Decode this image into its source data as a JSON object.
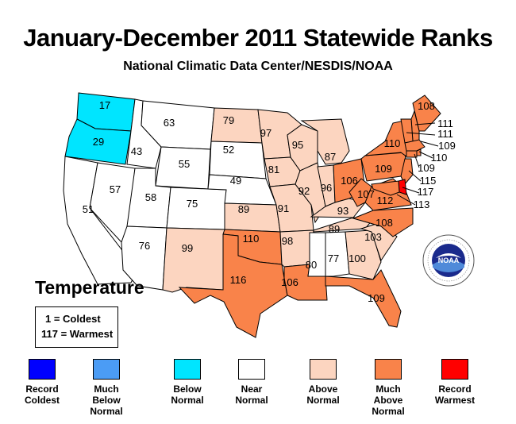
{
  "title": "January-December 2011 Statewide Ranks",
  "subtitle": "National Climatic Data Center/NESDIS/NOAA",
  "map_label": "Temperature",
  "key": {
    "coldest": "1 = Coldest",
    "warmest": "117 = Warmest"
  },
  "colors": {
    "record_coldest": "#0000ff",
    "much_below": "#4b9cf5",
    "below": "#00e5ff",
    "near": "#ffffff",
    "above": "#fcd5c0",
    "much_above": "#f9834a",
    "record_warmest": "#ff0000"
  },
  "legend": [
    {
      "label": "Record\nColdest",
      "color": "#0000ff"
    },
    {
      "label": "Much\nBelow\nNormal",
      "color": "#4b9cf5"
    },
    {
      "label": "Below\nNormal",
      "color": "#00e5ff"
    },
    {
      "label": "Near\nNormal",
      "color": "#ffffff"
    },
    {
      "label": "Above\nNormal",
      "color": "#fcd5c0"
    },
    {
      "label": "Much\nAbove\nNormal",
      "color": "#f9834a"
    },
    {
      "label": "Record\nWarmest",
      "color": "#ff0000"
    }
  ],
  "states": [
    {
      "id": "WA",
      "rank": "17",
      "category": "below"
    },
    {
      "id": "OR",
      "rank": "29",
      "category": "below"
    },
    {
      "id": "CA",
      "rank": "51",
      "category": "near"
    },
    {
      "id": "NV",
      "rank": "57",
      "category": "near"
    },
    {
      "id": "ID",
      "rank": "43",
      "category": "near"
    },
    {
      "id": "MT",
      "rank": "63",
      "category": "near"
    },
    {
      "id": "WY",
      "rank": "55",
      "category": "near"
    },
    {
      "id": "UT",
      "rank": "58",
      "category": "near"
    },
    {
      "id": "AZ",
      "rank": "76",
      "category": "near"
    },
    {
      "id": "CO",
      "rank": "75",
      "category": "near"
    },
    {
      "id": "NM",
      "rank": "99",
      "category": "above"
    },
    {
      "id": "ND",
      "rank": "79",
      "category": "above"
    },
    {
      "id": "SD",
      "rank": "52",
      "category": "near"
    },
    {
      "id": "NE",
      "rank": "49",
      "category": "near"
    },
    {
      "id": "KS",
      "rank": "89",
      "category": "above"
    },
    {
      "id": "OK",
      "rank": "110",
      "category": "much_above"
    },
    {
      "id": "TX",
      "rank": "116",
      "category": "much_above"
    },
    {
      "id": "MN",
      "rank": "97",
      "category": "above"
    },
    {
      "id": "IA",
      "rank": "81",
      "category": "above"
    },
    {
      "id": "MO",
      "rank": "91",
      "category": "above"
    },
    {
      "id": "AR",
      "rank": "98",
      "category": "above"
    },
    {
      "id": "LA",
      "rank": "106",
      "category": "much_above"
    },
    {
      "id": "WI",
      "rank": "95",
      "category": "above"
    },
    {
      "id": "IL",
      "rank": "92",
      "category": "above"
    },
    {
      "id": "MI",
      "rank": "87",
      "category": "above"
    },
    {
      "id": "IN",
      "rank": "96",
      "category": "above"
    },
    {
      "id": "OH",
      "rank": "106",
      "category": "much_above"
    },
    {
      "id": "KY",
      "rank": "93",
      "category": "above"
    },
    {
      "id": "TN",
      "rank": "89",
      "category": "above"
    },
    {
      "id": "MS",
      "rank": "80",
      "category": "near"
    },
    {
      "id": "AL",
      "rank": "77",
      "category": "near"
    },
    {
      "id": "GA",
      "rank": "100",
      "category": "above"
    },
    {
      "id": "FL",
      "rank": "109",
      "category": "much_above"
    },
    {
      "id": "SC",
      "rank": "103",
      "category": "above"
    },
    {
      "id": "NC",
      "rank": "108",
      "category": "much_above"
    },
    {
      "id": "VA",
      "rank": "112",
      "category": "much_above"
    },
    {
      "id": "WV",
      "rank": "107",
      "category": "much_above"
    },
    {
      "id": "PA",
      "rank": "109",
      "category": "much_above"
    },
    {
      "id": "NY",
      "rank": "110",
      "category": "much_above"
    },
    {
      "id": "ME",
      "rank": "108",
      "category": "much_above"
    },
    {
      "id": "NH",
      "rank": "111",
      "category": "much_above"
    },
    {
      "id": "VT",
      "rank": "111",
      "category": "much_above"
    },
    {
      "id": "MA",
      "rank": "109",
      "category": "much_above"
    },
    {
      "id": "RI",
      "rank": "110",
      "category": "much_above"
    },
    {
      "id": "CT",
      "rank": "109",
      "category": "much_above"
    },
    {
      "id": "NJ",
      "rank": "115",
      "category": "much_above"
    },
    {
      "id": "DE",
      "rank": "117",
      "category": "record_warmest"
    },
    {
      "id": "MD",
      "rank": "113",
      "category": "much_above"
    }
  ]
}
